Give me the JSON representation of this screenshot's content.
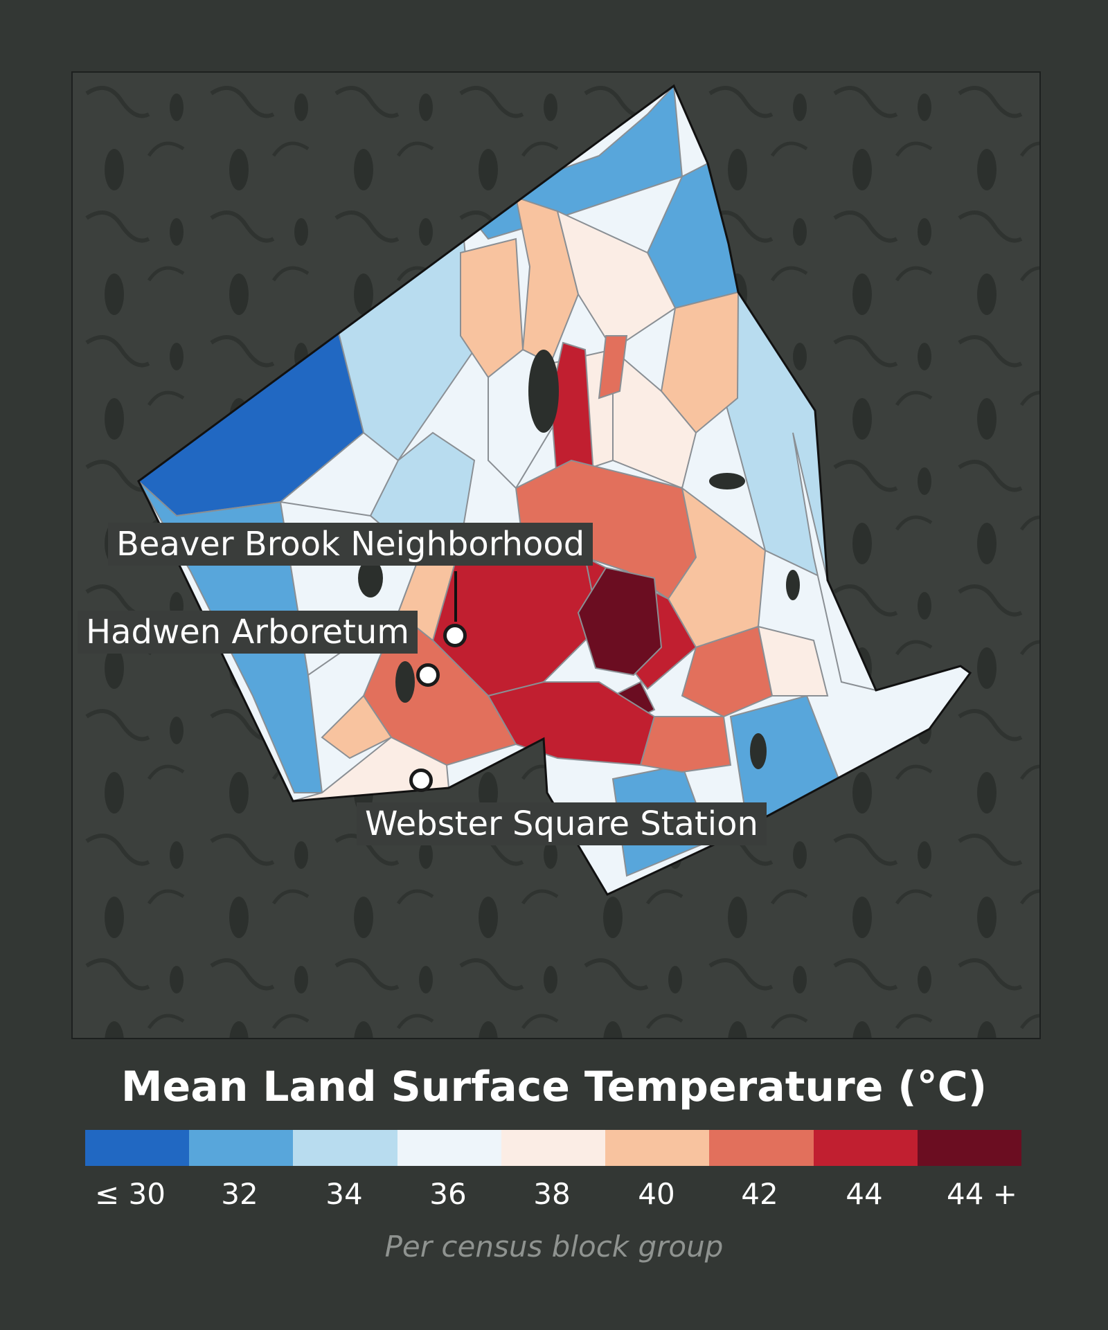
{
  "map": {
    "labels": {
      "beaver_brook": "Beaver Brook Neighborhood",
      "hadwen": "Hadwen Arboretum",
      "webster": "Webster Square Station"
    }
  },
  "legend": {
    "title": "Mean Land Surface Temperature (°C)",
    "colors": [
      "#2168c2",
      "#58a6db",
      "#b8dcef",
      "#eef5fa",
      "#fbede5",
      "#f8c39f",
      "#e2705c",
      "#c11f30",
      "#6b0d21"
    ],
    "ticks": [
      "≤  30",
      "32",
      "34",
      "36",
      "38",
      "40",
      "42",
      "44",
      "44 +"
    ],
    "note": "Per census block group"
  }
}
